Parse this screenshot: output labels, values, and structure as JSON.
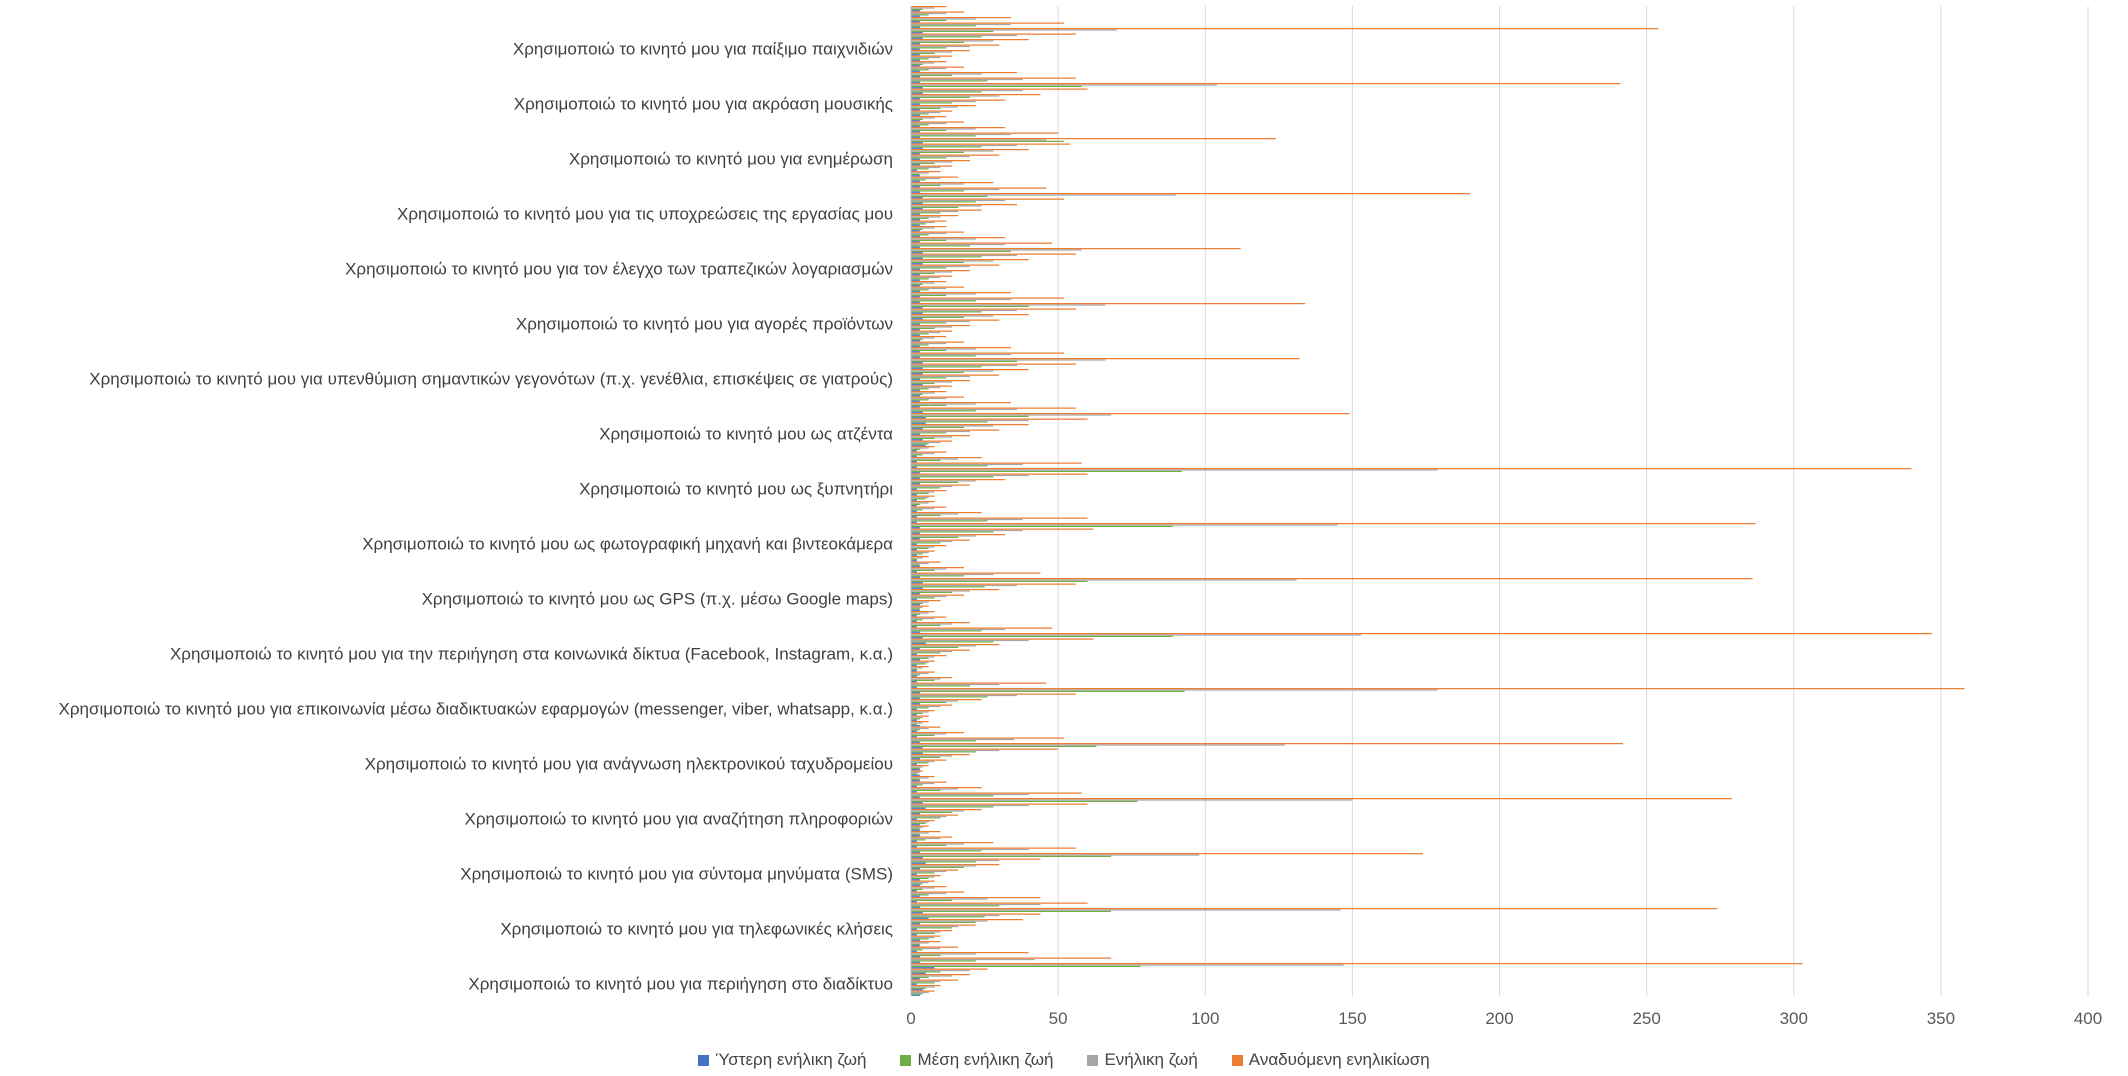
{
  "chart_data": {
    "type": "bar",
    "orientation": "horizontal",
    "title": "",
    "xlabel": "",
    "ylabel": "",
    "xlim": [
      0,
      400
    ],
    "x_ticks": [
      "0",
      "50",
      "100",
      "150",
      "200",
      "250",
      "300",
      "350",
      "400"
    ],
    "grid": "vertical",
    "legend_position": "bottom",
    "categories": [
      "Χρησιμοποιώ το κινητό μου για περιήγηση στο διαδίκτυο",
      "Χρησιμοποιώ το κινητό μου για τηλεφωνικές κλήσεις",
      "Χρησιμοποιώ το κινητό μου για σύντομα μηνύματα (SMS)",
      "Χρησιμοποιώ το κινητό μου για αναζήτηση πληροφοριών",
      "Χρησιμοποιώ το κινητό μου για ανάγνωση ηλεκτρονικού ταχυδρομείου",
      "Χρησιμοποιώ το κινητό μου για επικοινωνία μέσω διαδικτυακών εφαρμογών (messenger, viber, whatsapp, κ.α.)",
      "Χρησιμοποιώ το κινητό μου για την περιήγηση στα κοινωνικά δίκτυα (Facebook, Instagram, κ.α.)",
      "Χρησιμοποιώ το κινητό μου ως GPS (π.χ. μέσω Google maps)",
      "Χρησιμοποιώ το κινητό μου ως φωτογραφική μηχανή και βιντεοκάμερα",
      "Χρησιμοποιώ το κινητό μου ως ξυπνητήρι",
      "Χρησιμοποιώ το κινητό μου ως ατζέντα",
      "Χρησιμοποιώ το κινητό μου για υπενθύμιση σημαντικών γεγονότων (π.χ. γενέθλια, επισκέψεις σε γιατρούς)",
      "Χρησιμοποιώ το κινητό μου για αγορές προϊόντων",
      "Χρησιμοποιώ το κινητό μου για τον έλεγχο των τραπεζικών λογαριασμών",
      "Χρησιμοποιώ το κινητό μου για τις υποχρεώσεις της εργασίας μου",
      "Χρησιμοποιώ το κινητό μου για ενημέρωση",
      "Χρησιμοποιώ το κινητό μου για ακρόαση μουσικής",
      "Χρησιμοποιώ το κινητό μου για παίξιμο παιχνιδιών"
    ],
    "series": [
      {
        "name": "Ύστερη ενήλικη ζωή",
        "color": "#4472C4",
        "values": [
          [
            3,
            4,
            2,
            3,
            5,
            8,
            3,
            3,
            2,
            3
          ],
          [
            3,
            2,
            2,
            3,
            6,
            4,
            3,
            2,
            3,
            2
          ],
          [
            3,
            3,
            2,
            3,
            5,
            4,
            3,
            2,
            2,
            3
          ],
          [
            3,
            3,
            2,
            3,
            5,
            4,
            3,
            2,
            2,
            3
          ],
          [
            3,
            3,
            2,
            3,
            4,
            4,
            3,
            2,
            2,
            3
          ],
          [
            2,
            2,
            2,
            3,
            3,
            3,
            2,
            2,
            2,
            2
          ],
          [
            2,
            3,
            2,
            3,
            5,
            4,
            3,
            2,
            2,
            2
          ],
          [
            3,
            3,
            2,
            3,
            4,
            4,
            3,
            2,
            3,
            2
          ],
          [
            2,
            2,
            2,
            3,
            3,
            3,
            2,
            2,
            2,
            2
          ],
          [
            2,
            2,
            2,
            3,
            3,
            3,
            2,
            2,
            2,
            2
          ],
          [
            5,
            4,
            3,
            4,
            5,
            5,
            4,
            3,
            3,
            3
          ],
          [
            3,
            4,
            3,
            4,
            4,
            4,
            3,
            3,
            3,
            3
          ],
          [
            3,
            3,
            3,
            4,
            4,
            4,
            3,
            3,
            3,
            3
          ],
          [
            3,
            3,
            3,
            4,
            4,
            4,
            3,
            3,
            3,
            3
          ],
          [
            3,
            3,
            3,
            4,
            4,
            4,
            3,
            3,
            3,
            3
          ],
          [
            2,
            3,
            3,
            3,
            4,
            4,
            3,
            3,
            3,
            3
          ],
          [
            3,
            3,
            3,
            3,
            4,
            4,
            3,
            3,
            3,
            3
          ],
          [
            3,
            3,
            3,
            3,
            4,
            4,
            3,
            3,
            3,
            3
          ]
        ]
      },
      {
        "name": "Μέση ενήλικη ζωή",
        "color": "#70AD47",
        "values": [
          [
            4,
            5,
            8,
            6,
            10,
            78,
            22,
            10,
            4,
            3
          ],
          [
            6,
            8,
            14,
            22,
            25,
            68,
            30,
            14,
            6,
            4
          ],
          [
            4,
            6,
            8,
            18,
            22,
            68,
            24,
            12,
            5,
            3
          ],
          [
            3,
            5,
            10,
            14,
            28,
            77,
            28,
            10,
            4,
            3
          ],
          [
            2,
            3,
            6,
            10,
            22,
            63,
            22,
            8,
            3,
            2
          ],
          [
            3,
            4,
            6,
            12,
            26,
            93,
            20,
            8,
            3,
            2
          ],
          [
            5,
            6,
            10,
            16,
            28,
            89,
            24,
            10,
            4,
            3
          ],
          [
            3,
            4,
            8,
            14,
            25,
            60,
            18,
            8,
            3,
            2
          ],
          [
            4,
            6,
            10,
            16,
            28,
            89,
            26,
            10,
            4,
            3
          ],
          [
            5,
            6,
            10,
            16,
            28,
            92,
            26,
            10,
            4,
            3
          ],
          [
            6,
            8,
            12,
            18,
            26,
            40,
            22,
            12,
            6,
            4
          ],
          [
            6,
            8,
            12,
            18,
            24,
            36,
            22,
            12,
            6,
            4
          ],
          [
            6,
            8,
            12,
            18,
            24,
            40,
            22,
            12,
            6,
            4
          ],
          [
            6,
            8,
            12,
            18,
            24,
            34,
            20,
            12,
            6,
            4
          ],
          [
            5,
            6,
            10,
            16,
            22,
            26,
            18,
            10,
            5,
            3
          ],
          [
            6,
            8,
            12,
            18,
            24,
            52,
            22,
            12,
            6,
            4
          ],
          [
            6,
            10,
            14,
            20,
            24,
            58,
            26,
            14,
            6,
            4
          ],
          [
            6,
            8,
            12,
            18,
            24,
            28,
            22,
            12,
            6,
            4
          ]
        ]
      },
      {
        "name": "Ενήλικη ζωή",
        "color": "#A5A5A5",
        "values": [
          [
            6,
            8,
            10,
            14,
            20,
            147,
            42,
            22,
            10,
            6
          ],
          [
            8,
            10,
            16,
            26,
            30,
            146,
            44,
            26,
            12,
            8
          ],
          [
            6,
            8,
            12,
            22,
            30,
            98,
            40,
            18,
            10,
            6
          ],
          [
            4,
            6,
            12,
            18,
            40,
            150,
            40,
            16,
            8,
            6
          ],
          [
            3,
            4,
            8,
            14,
            30,
            127,
            35,
            12,
            6,
            4
          ],
          [
            4,
            6,
            10,
            16,
            36,
            179,
            30,
            10,
            6,
            4
          ],
          [
            6,
            8,
            14,
            22,
            40,
            153,
            32,
            14,
            8,
            6
          ],
          [
            4,
            6,
            12,
            20,
            36,
            131,
            28,
            12,
            6,
            4
          ],
          [
            6,
            8,
            14,
            22,
            38,
            145,
            38,
            16,
            8,
            6
          ],
          [
            6,
            8,
            14,
            22,
            40,
            179,
            38,
            16,
            8,
            6
          ],
          [
            10,
            14,
            20,
            28,
            40,
            68,
            36,
            22,
            12,
            8
          ],
          [
            10,
            14,
            20,
            28,
            36,
            66,
            34,
            22,
            12,
            8
          ],
          [
            10,
            14,
            20,
            28,
            36,
            66,
            34,
            22,
            12,
            8
          ],
          [
            10,
            14,
            20,
            28,
            36,
            58,
            32,
            22,
            12,
            8
          ],
          [
            8,
            10,
            16,
            24,
            32,
            90,
            30,
            18,
            10,
            6
          ],
          [
            10,
            14,
            20,
            28,
            36,
            46,
            34,
            22,
            12,
            8
          ],
          [
            10,
            16,
            22,
            30,
            38,
            104,
            38,
            24,
            12,
            8
          ],
          [
            10,
            14,
            20,
            28,
            36,
            70,
            34,
            22,
            12,
            8
          ]
        ]
      },
      {
        "name": "Αναδυόμενη ενηλικίωση",
        "color": "#ED7D31",
        "values": [
          [
            8,
            10,
            16,
            20,
            26,
            303,
            68,
            40,
            16,
            10
          ],
          [
            10,
            14,
            22,
            38,
            44,
            274,
            60,
            44,
            18,
            12
          ],
          [
            8,
            10,
            16,
            30,
            44,
            174,
            56,
            28,
            14,
            10
          ],
          [
            6,
            8,
            16,
            24,
            60,
            279,
            58,
            24,
            12,
            8
          ],
          [
            4,
            6,
            12,
            20,
            50,
            242,
            52,
            18,
            10,
            6
          ],
          [
            6,
            8,
            14,
            24,
            56,
            358,
            46,
            14,
            8,
            6
          ],
          [
            8,
            12,
            20,
            30,
            62,
            347,
            48,
            20,
            12,
            8
          ],
          [
            6,
            10,
            18,
            30,
            56,
            286,
            44,
            18,
            10,
            6
          ],
          [
            8,
            12,
            20,
            32,
            62,
            287,
            60,
            24,
            12,
            8
          ],
          [
            8,
            12,
            20,
            32,
            60,
            340,
            58,
            24,
            12,
            8
          ],
          [
            14,
            20,
            30,
            40,
            60,
            149,
            56,
            34,
            18,
            12
          ],
          [
            14,
            20,
            30,
            40,
            56,
            132,
            52,
            34,
            18,
            12
          ],
          [
            14,
            20,
            30,
            40,
            56,
            134,
            52,
            34,
            18,
            12
          ],
          [
            14,
            20,
            30,
            40,
            56,
            112,
            48,
            32,
            18,
            12
          ],
          [
            12,
            16,
            24,
            36,
            52,
            190,
            46,
            28,
            16,
            10
          ],
          [
            14,
            20,
            30,
            40,
            54,
            124,
            50,
            32,
            18,
            12
          ],
          [
            14,
            22,
            32,
            44,
            60,
            241,
            56,
            36,
            18,
            12
          ],
          [
            14,
            20,
            30,
            40,
            56,
            254,
            52,
            34,
            18,
            12
          ]
        ]
      }
    ]
  }
}
